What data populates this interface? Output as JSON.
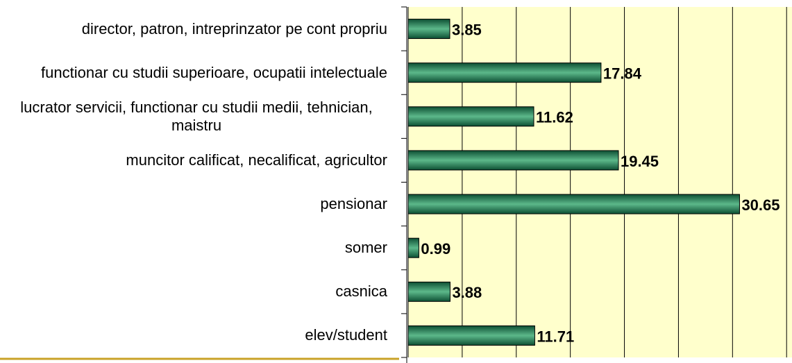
{
  "chart_data": {
    "type": "bar",
    "orientation": "horizontal",
    "categories": [
      "director, patron, intreprinzator pe cont propriu",
      "functionar cu studii superioare, ocupatii intelectuale",
      "lucrator servicii, functionar cu studii medii, tehnician, maistru",
      "muncitor calificat, necalificat, agricultor",
      "pensionar",
      "somer",
      "casnica",
      "elev/student"
    ],
    "values": [
      3.85,
      17.84,
      11.62,
      19.45,
      30.65,
      0.99,
      3.88,
      11.71
    ],
    "color": "#1f7a50",
    "background": "#ffffcc",
    "xlim": [
      0,
      35.5
    ],
    "xticks": [
      0,
      5,
      10,
      15,
      20,
      25,
      30,
      35
    ],
    "grid": true
  }
}
